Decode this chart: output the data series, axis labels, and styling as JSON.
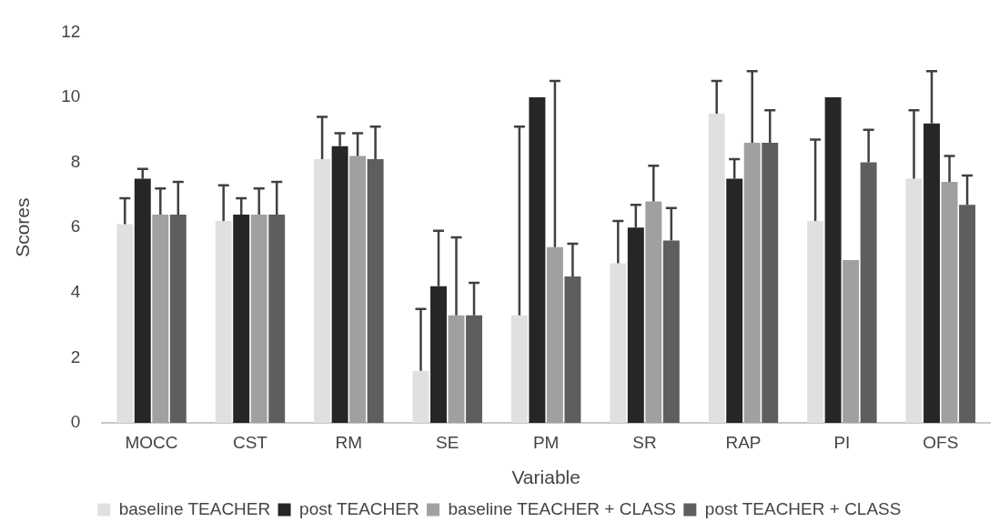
{
  "chart_data": {
    "type": "bar",
    "xlabel": "Variable",
    "ylabel": "Scores",
    "categories": [
      "MOCC",
      "CST",
      "RM",
      "SE",
      "PM",
      "SR",
      "RAP",
      "PI",
      "OFS"
    ],
    "series": [
      {
        "name": "baseline TEACHER",
        "color": "#e0e0e0",
        "values": [
          6.1,
          6.2,
          8.1,
          1.6,
          3.3,
          4.9,
          9.5,
          6.2,
          7.5
        ],
        "errors": [
          [
            6.1,
            6.9
          ],
          [
            6.2,
            7.3
          ],
          [
            8.1,
            9.4
          ],
          [
            1.6,
            3.5
          ],
          [
            3.3,
            9.1
          ],
          [
            4.9,
            6.2
          ],
          [
            9.5,
            10.5
          ],
          [
            6.2,
            8.7
          ],
          [
            7.5,
            9.6
          ]
        ]
      },
      {
        "name": "post TEACHER",
        "color": "#262626",
        "values": [
          7.5,
          6.4,
          8.5,
          4.2,
          10.0,
          6.0,
          7.5,
          10.0,
          9.2
        ],
        "errors": [
          [
            7.5,
            7.8
          ],
          [
            6.4,
            6.9
          ],
          [
            8.5,
            8.9
          ],
          [
            4.2,
            5.9
          ],
          null,
          [
            6.0,
            6.7
          ],
          [
            7.5,
            8.1
          ],
          null,
          [
            9.2,
            10.8
          ]
        ]
      },
      {
        "name": "baseline TEACHER + CLASS",
        "color": "#a0a0a0",
        "values": [
          6.4,
          6.4,
          8.2,
          3.3,
          5.4,
          6.8,
          8.6,
          5.0,
          7.4
        ],
        "errors": [
          [
            6.4,
            7.2
          ],
          [
            6.4,
            7.2
          ],
          [
            8.2,
            8.9
          ],
          [
            3.3,
            5.7
          ],
          [
            5.4,
            10.5
          ],
          [
            6.8,
            7.9
          ],
          [
            8.6,
            10.8
          ],
          null,
          [
            7.4,
            8.2
          ]
        ]
      },
      {
        "name": "post TEACHER + CLASS",
        "color": "#5e5e5e",
        "values": [
          6.4,
          6.4,
          8.1,
          3.3,
          4.5,
          5.6,
          8.6,
          8.0,
          6.7
        ],
        "errors": [
          [
            6.4,
            7.4
          ],
          [
            6.4,
            7.4
          ],
          [
            8.1,
            9.1
          ],
          [
            3.3,
            4.3
          ],
          [
            4.5,
            5.5
          ],
          [
            5.6,
            6.6
          ],
          [
            8.6,
            9.6
          ],
          [
            8.0,
            9.0
          ],
          [
            6.7,
            7.6
          ]
        ]
      }
    ],
    "ylim": [
      0,
      12
    ],
    "yticks": [
      0,
      2,
      4,
      6,
      8,
      10,
      12
    ],
    "grid": false,
    "legend": "bottom"
  }
}
